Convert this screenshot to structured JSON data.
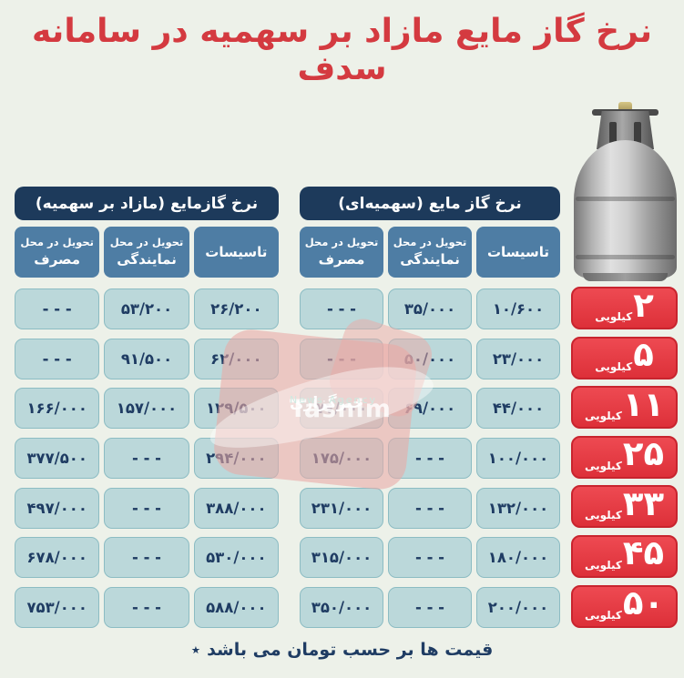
{
  "title": "نرخ گاز مایع مازاد بر سهمیه در سامانه سدف",
  "tables": {
    "quota": {
      "title": "نرخ گاز مایع (سهمیه‌ای)",
      "columns": [
        {
          "top": "",
          "main": "تاسیسات"
        },
        {
          "top": "تحویل در محل",
          "main": "نمایندگی"
        },
        {
          "top": "تحویل در محل",
          "main": "مصرف"
        }
      ],
      "rows": [
        [
          "۱۰/۶۰۰",
          "۳۵/۰۰۰",
          "- - -"
        ],
        [
          "۲۳/۰۰۰",
          "۵۰/۰۰۰",
          "- - -"
        ],
        [
          "۴۴/۰۰۰",
          "۶۹/۰۰۰",
          "۷۷/۰۰۰"
        ],
        [
          "۱۰۰/۰۰۰",
          "- - -",
          "۱۷۵/۰۰۰"
        ],
        [
          "۱۳۲/۰۰۰",
          "- - -",
          "۲۳۱/۰۰۰"
        ],
        [
          "۱۸۰/۰۰۰",
          "- - -",
          "۳۱۵/۰۰۰"
        ],
        [
          "۲۰۰/۰۰۰",
          "- - -",
          "۳۵۰/۰۰۰"
        ]
      ]
    },
    "excess": {
      "title": "نرخ گازمایع (مازاد بر سهمیه)",
      "columns": [
        {
          "top": "",
          "main": "تاسیسات"
        },
        {
          "top": "تحویل در محل",
          "main": "نمایندگی"
        },
        {
          "top": "تحویل در محل",
          "main": "مصرف"
        }
      ],
      "rows": [
        [
          "۲۶/۲۰۰",
          "۵۳/۲۰۰",
          "- - -"
        ],
        [
          "۶۲/۰۰۰",
          "۹۱/۵۰۰",
          "- - -"
        ],
        [
          "۱۲۹/۵۰۰",
          "۱۵۷/۰۰۰",
          "۱۶۶/۰۰۰"
        ],
        [
          "۲۹۴/۰۰۰",
          "- - -",
          "۳۷۷/۵۰۰"
        ],
        [
          "۳۸۸/۰۰۰",
          "- - -",
          "۴۹۷/۰۰۰"
        ],
        [
          "۵۳۰/۰۰۰",
          "- - -",
          "۶۷۸/۰۰۰"
        ],
        [
          "۵۸۸/۰۰۰",
          "- - -",
          "۷۵۳/۰۰۰"
        ]
      ]
    }
  },
  "sizes": [
    {
      "value": "۲",
      "unit": "کیلویی"
    },
    {
      "value": "۵",
      "unit": "کیلویی"
    },
    {
      "value": "۱۱",
      "unit": "کیلویی"
    },
    {
      "value": "۲۵",
      "unit": "کیلویی"
    },
    {
      "value": "۳۳",
      "unit": "کیلویی"
    },
    {
      "value": "۴۵",
      "unit": "کیلویی"
    },
    {
      "value": "۵۰",
      "unit": "کیلویی"
    }
  ],
  "footer": {
    "star": "٭",
    "text": "قیمت ها بر حسب تومان می باشد"
  },
  "watermark": {
    "fa": "خبرگزاری",
    "en": "Tasnim",
    "sub": "News Agency"
  },
  "colors": {
    "title_red": "#d43a40",
    "badge_red": "#e2424a",
    "navy_header": "#1d3a5b",
    "steel_blue_header": "#4e7da4",
    "cell_blue": "#bbd8da",
    "cell_text_navy": "#1f3c63",
    "background": "#edf1e9"
  }
}
